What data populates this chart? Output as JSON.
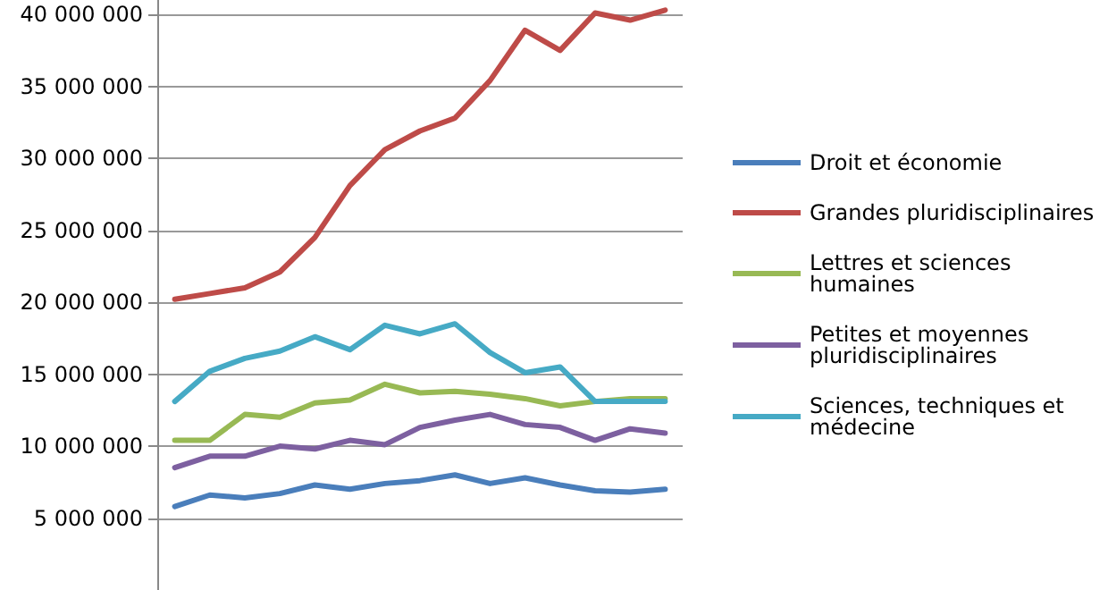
{
  "chart_data": {
    "type": "line",
    "categories": [
      null,
      null,
      null,
      null,
      null,
      null,
      null,
      null,
      null,
      null,
      null,
      null,
      null,
      null,
      null
    ],
    "series": [
      {
        "name": "Droit et économie",
        "color": "#4a7ebb",
        "values": [
          5800000,
          6600000,
          6400000,
          6700000,
          7300000,
          7000000,
          7400000,
          7600000,
          8000000,
          7400000,
          7800000,
          7300000,
          6900000,
          6800000,
          7000000
        ]
      },
      {
        "name": "Grandes pluridisciplinaires",
        "color": "#be4b48",
        "values": [
          20200000,
          20600000,
          21000000,
          22100000,
          24500000,
          28100000,
          30600000,
          31900000,
          32800000,
          35400000,
          38900000,
          37500000,
          40100000,
          39600000,
          40300000
        ]
      },
      {
        "name": "Lettres et sciences humaines",
        "color": "#98b954",
        "values": [
          10400000,
          10400000,
          12200000,
          12000000,
          13000000,
          13200000,
          14300000,
          13700000,
          13800000,
          13600000,
          13300000,
          12800000,
          13100000,
          13300000,
          13300000
        ]
      },
      {
        "name": "Petites et moyennes pluridisciplinaires",
        "color": "#7d60a0",
        "values": [
          8500000,
          9300000,
          9300000,
          10000000,
          9800000,
          10400000,
          10100000,
          11300000,
          11800000,
          12200000,
          11500000,
          11300000,
          10400000,
          11200000,
          10900000
        ]
      },
      {
        "name": "Sciences, techniques et médecine",
        "color": "#46aac5",
        "values": [
          13100000,
          15200000,
          16100000,
          16600000,
          17600000,
          16700000,
          18400000,
          17800000,
          18500000,
          16500000,
          15100000,
          15500000,
          13100000,
          13100000,
          13100000
        ]
      }
    ],
    "ylim": [
      0,
      41000000
    ],
    "yticks": [
      {
        "value": 5000000,
        "label": "5 000 000"
      },
      {
        "value": 10000000,
        "label": "10 000 000"
      },
      {
        "value": 15000000,
        "label": "15 000 000"
      },
      {
        "value": 20000000,
        "label": "20 000 000"
      },
      {
        "value": 25000000,
        "label": "25 000 000"
      },
      {
        "value": 30000000,
        "label": "30 000 000"
      },
      {
        "value": 35000000,
        "label": "35 000 000"
      },
      {
        "value": 40000000,
        "label": "40 000 000"
      }
    ],
    "grid": "y",
    "legend": "right",
    "tick_labels": "y",
    "marker": "none",
    "line_style": "solid"
  }
}
